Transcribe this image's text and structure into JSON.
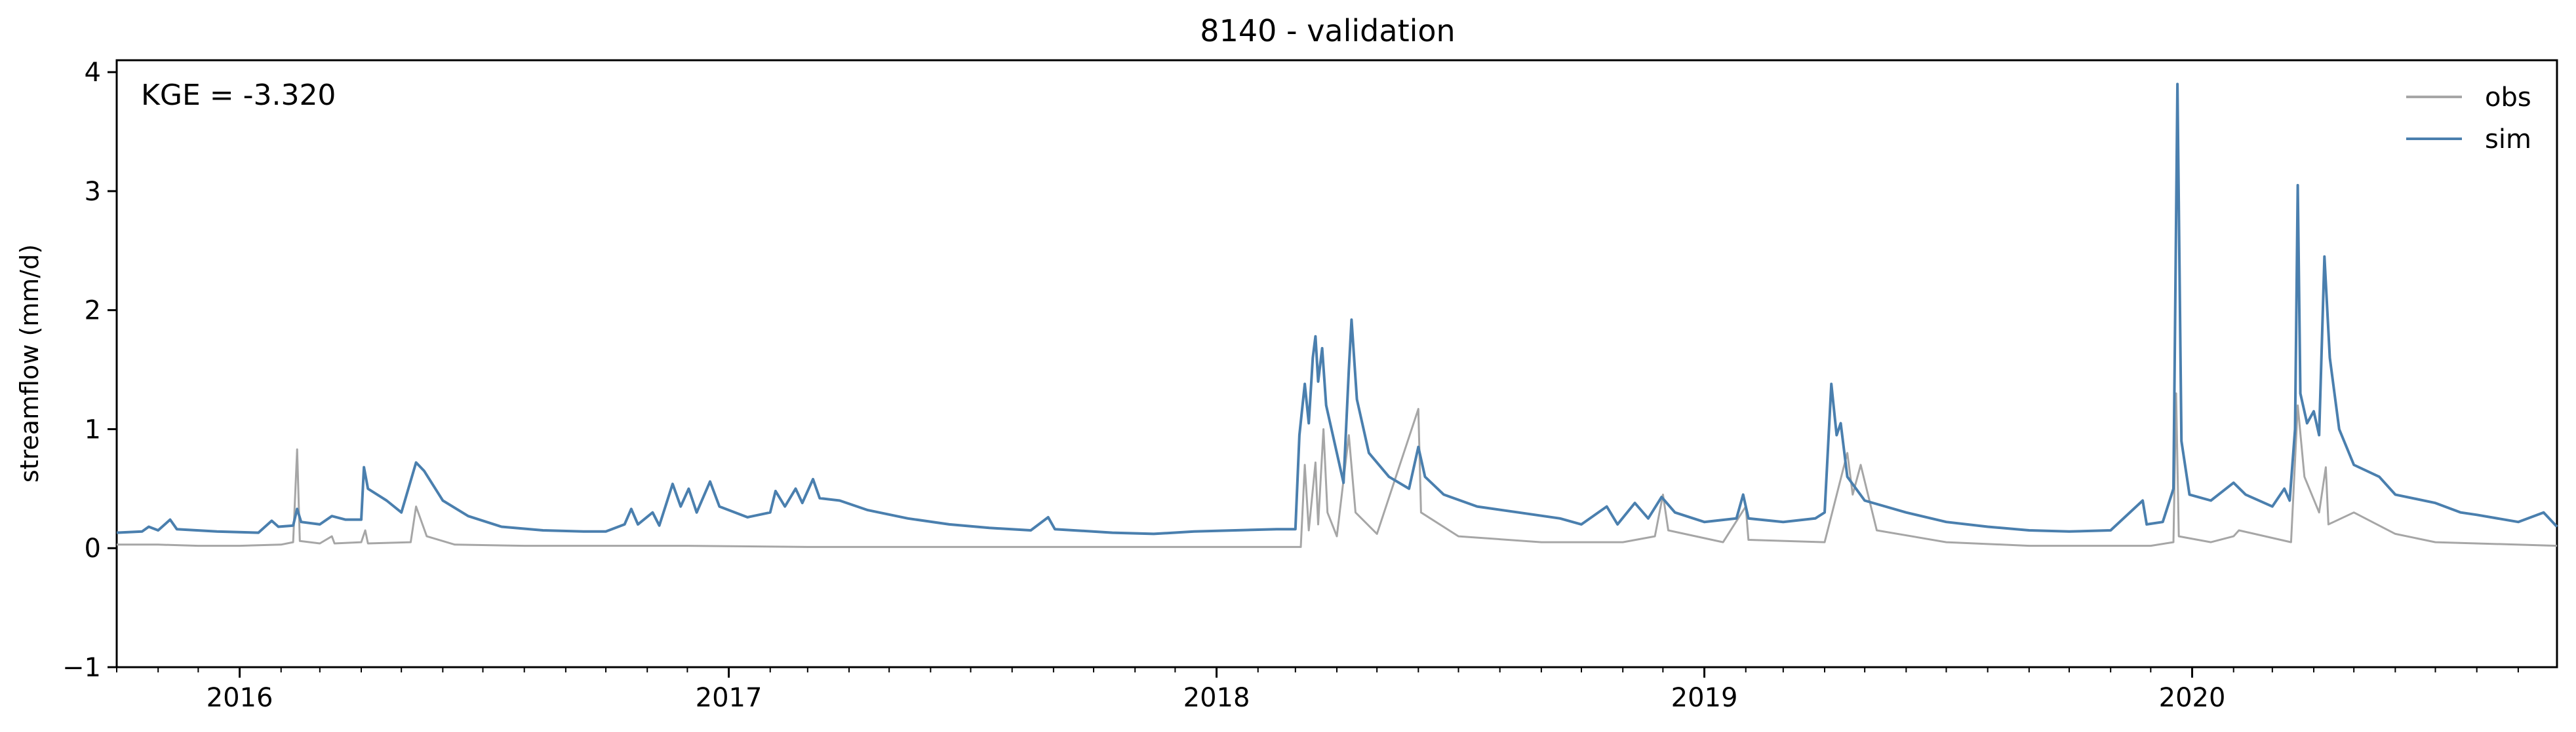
{
  "chart_data": {
    "type": "line",
    "title": "8140 - validation",
    "xlabel": "",
    "ylabel": "streamflow (mm/d)",
    "xlim": [
      "2015-10-01",
      "2020-09-30"
    ],
    "ylim": [
      -1,
      4.1
    ],
    "yticks": [
      -1,
      0,
      1,
      2,
      3,
      4
    ],
    "xticks": [
      "2016",
      "2017",
      "2018",
      "2019",
      "2020"
    ],
    "annotation": "KGE = -3.320",
    "legend": "top-right",
    "grid": false,
    "series": [
      {
        "name": "obs",
        "color": "#a6a6a6",
        "points": [
          [
            "2015-10-01",
            0.03
          ],
          [
            "2015-11-01",
            0.03
          ],
          [
            "2015-12-01",
            0.02
          ],
          [
            "2016-01-01",
            0.02
          ],
          [
            "2016-02-01",
            0.03
          ],
          [
            "2016-02-10",
            0.05
          ],
          [
            "2016-02-13",
            0.83
          ],
          [
            "2016-02-15",
            0.06
          ],
          [
            "2016-03-01",
            0.04
          ],
          [
            "2016-03-10",
            0.1
          ],
          [
            "2016-03-12",
            0.04
          ],
          [
            "2016-04-01",
            0.05
          ],
          [
            "2016-04-04",
            0.15
          ],
          [
            "2016-04-06",
            0.04
          ],
          [
            "2016-05-08",
            0.05
          ],
          [
            "2016-05-12",
            0.35
          ],
          [
            "2016-05-20",
            0.1
          ],
          [
            "2016-06-10",
            0.03
          ],
          [
            "2016-08-01",
            0.02
          ],
          [
            "2016-10-01",
            0.02
          ],
          [
            "2016-12-01",
            0.02
          ],
          [
            "2017-03-01",
            0.01
          ],
          [
            "2017-06-01",
            0.01
          ],
          [
            "2017-09-01",
            0.01
          ],
          [
            "2017-12-01",
            0.01
          ],
          [
            "2018-03-05",
            0.01
          ],
          [
            "2018-03-08",
            0.7
          ],
          [
            "2018-03-11",
            0.15
          ],
          [
            "2018-03-16",
            0.72
          ],
          [
            "2018-03-18",
            0.2
          ],
          [
            "2018-03-22",
            1.0
          ],
          [
            "2018-03-25",
            0.3
          ],
          [
            "2018-04-01",
            0.1
          ],
          [
            "2018-04-10",
            0.95
          ],
          [
            "2018-04-15",
            0.3
          ],
          [
            "2018-05-01",
            0.12
          ],
          [
            "2018-06-01",
            1.17
          ],
          [
            "2018-06-03",
            0.3
          ],
          [
            "2018-07-01",
            0.1
          ],
          [
            "2018-09-01",
            0.05
          ],
          [
            "2018-11-01",
            0.05
          ],
          [
            "2018-11-25",
            0.1
          ],
          [
            "2018-12-01",
            0.45
          ],
          [
            "2018-12-05",
            0.15
          ],
          [
            "2019-01-15",
            0.05
          ],
          [
            "2019-02-01",
            0.35
          ],
          [
            "2019-02-03",
            0.07
          ],
          [
            "2019-04-01",
            0.05
          ],
          [
            "2019-04-18",
            0.8
          ],
          [
            "2019-04-22",
            0.45
          ],
          [
            "2019-04-28",
            0.7
          ],
          [
            "2019-05-10",
            0.15
          ],
          [
            "2019-07-01",
            0.05
          ],
          [
            "2019-09-01",
            0.02
          ],
          [
            "2019-12-01",
            0.02
          ],
          [
            "2019-12-18",
            0.05
          ],
          [
            "2019-12-20",
            1.3
          ],
          [
            "2019-12-22",
            0.1
          ],
          [
            "2020-01-15",
            0.05
          ],
          [
            "2020-02-01",
            0.1
          ],
          [
            "2020-02-05",
            0.15
          ],
          [
            "2020-03-15",
            0.05
          ],
          [
            "2020-03-20",
            1.2
          ],
          [
            "2020-03-25",
            0.6
          ],
          [
            "2020-04-05",
            0.3
          ],
          [
            "2020-04-10",
            0.68
          ],
          [
            "2020-04-12",
            0.2
          ],
          [
            "2020-05-01",
            0.3
          ],
          [
            "2020-06-01",
            0.12
          ],
          [
            "2020-07-01",
            0.05
          ],
          [
            "2020-09-30",
            0.02
          ]
        ]
      },
      {
        "name": "sim",
        "color": "#4a7fae",
        "points": [
          [
            "2015-10-01",
            0.13
          ],
          [
            "2015-10-20",
            0.14
          ],
          [
            "2015-10-25",
            0.18
          ],
          [
            "2015-11-01",
            0.15
          ],
          [
            "2015-11-10",
            0.24
          ],
          [
            "2015-11-15",
            0.16
          ],
          [
            "2015-12-15",
            0.14
          ],
          [
            "2016-01-15",
            0.13
          ],
          [
            "2016-01-25",
            0.23
          ],
          [
            "2016-01-30",
            0.18
          ],
          [
            "2016-02-10",
            0.19
          ],
          [
            "2016-02-13",
            0.33
          ],
          [
            "2016-02-16",
            0.22
          ],
          [
            "2016-03-01",
            0.2
          ],
          [
            "2016-03-10",
            0.27
          ],
          [
            "2016-03-20",
            0.24
          ],
          [
            "2016-04-01",
            0.24
          ],
          [
            "2016-04-03",
            0.68
          ],
          [
            "2016-04-06",
            0.5
          ],
          [
            "2016-04-20",
            0.4
          ],
          [
            "2016-05-01",
            0.3
          ],
          [
            "2016-05-12",
            0.72
          ],
          [
            "2016-05-18",
            0.65
          ],
          [
            "2016-06-01",
            0.4
          ],
          [
            "2016-06-20",
            0.27
          ],
          [
            "2016-07-15",
            0.18
          ],
          [
            "2016-08-15",
            0.15
          ],
          [
            "2016-09-15",
            0.14
          ],
          [
            "2016-10-01",
            0.14
          ],
          [
            "2016-10-15",
            0.2
          ],
          [
            "2016-10-20",
            0.33
          ],
          [
            "2016-10-25",
            0.2
          ],
          [
            "2016-11-05",
            0.3
          ],
          [
            "2016-11-10",
            0.19
          ],
          [
            "2016-11-20",
            0.54
          ],
          [
            "2016-11-26",
            0.35
          ],
          [
            "2016-12-02",
            0.5
          ],
          [
            "2016-12-08",
            0.3
          ],
          [
            "2016-12-18",
            0.56
          ],
          [
            "2016-12-25",
            0.35
          ],
          [
            "2017-01-15",
            0.26
          ],
          [
            "2017-02-01",
            0.3
          ],
          [
            "2017-02-05",
            0.48
          ],
          [
            "2017-02-12",
            0.35
          ],
          [
            "2017-02-20",
            0.5
          ],
          [
            "2017-02-25",
            0.38
          ],
          [
            "2017-03-05",
            0.58
          ],
          [
            "2017-03-10",
            0.42
          ],
          [
            "2017-03-25",
            0.4
          ],
          [
            "2017-04-15",
            0.32
          ],
          [
            "2017-05-15",
            0.25
          ],
          [
            "2017-06-15",
            0.2
          ],
          [
            "2017-07-15",
            0.17
          ],
          [
            "2017-08-15",
            0.15
          ],
          [
            "2017-08-28",
            0.26
          ],
          [
            "2017-09-02",
            0.16
          ],
          [
            "2017-10-15",
            0.13
          ],
          [
            "2017-11-15",
            0.12
          ],
          [
            "2017-12-15",
            0.14
          ],
          [
            "2018-01-15",
            0.15
          ],
          [
            "2018-02-15",
            0.16
          ],
          [
            "2018-03-01",
            0.16
          ],
          [
            "2018-03-04",
            0.95
          ],
          [
            "2018-03-08",
            1.38
          ],
          [
            "2018-03-11",
            1.05
          ],
          [
            "2018-03-14",
            1.6
          ],
          [
            "2018-03-16",
            1.78
          ],
          [
            "2018-03-18",
            1.4
          ],
          [
            "2018-03-21",
            1.68
          ],
          [
            "2018-03-24",
            1.2
          ],
          [
            "2018-04-01",
            0.8
          ],
          [
            "2018-04-06",
            0.55
          ],
          [
            "2018-04-10",
            1.5
          ],
          [
            "2018-04-12",
            1.92
          ],
          [
            "2018-04-16",
            1.25
          ],
          [
            "2018-04-25",
            0.8
          ],
          [
            "2018-05-10",
            0.6
          ],
          [
            "2018-05-25",
            0.5
          ],
          [
            "2018-06-01",
            0.85
          ],
          [
            "2018-06-06",
            0.6
          ],
          [
            "2018-06-20",
            0.45
          ],
          [
            "2018-07-15",
            0.35
          ],
          [
            "2018-08-15",
            0.3
          ],
          [
            "2018-09-15",
            0.25
          ],
          [
            "2018-10-01",
            0.2
          ],
          [
            "2018-10-20",
            0.35
          ],
          [
            "2018-10-28",
            0.2
          ],
          [
            "2018-11-10",
            0.38
          ],
          [
            "2018-11-20",
            0.25
          ],
          [
            "2018-11-30",
            0.43
          ],
          [
            "2018-12-10",
            0.3
          ],
          [
            "2019-01-01",
            0.22
          ],
          [
            "2019-01-25",
            0.25
          ],
          [
            "2019-01-30",
            0.45
          ],
          [
            "2019-02-03",
            0.25
          ],
          [
            "2019-03-01",
            0.22
          ],
          [
            "2019-03-25",
            0.25
          ],
          [
            "2019-04-01",
            0.3
          ],
          [
            "2019-04-06",
            1.38
          ],
          [
            "2019-04-10",
            0.95
          ],
          [
            "2019-04-13",
            1.05
          ],
          [
            "2019-04-18",
            0.6
          ],
          [
            "2019-05-01",
            0.4
          ],
          [
            "2019-06-01",
            0.3
          ],
          [
            "2019-07-01",
            0.22
          ],
          [
            "2019-08-01",
            0.18
          ],
          [
            "2019-09-01",
            0.15
          ],
          [
            "2019-10-01",
            0.14
          ],
          [
            "2019-11-01",
            0.15
          ],
          [
            "2019-11-25",
            0.4
          ],
          [
            "2019-11-28",
            0.2
          ],
          [
            "2019-12-10",
            0.22
          ],
          [
            "2019-12-18",
            0.5
          ],
          [
            "2019-12-21",
            3.9
          ],
          [
            "2019-12-24",
            0.9
          ],
          [
            "2019-12-30",
            0.45
          ],
          [
            "2020-01-15",
            0.4
          ],
          [
            "2020-02-01",
            0.55
          ],
          [
            "2020-02-10",
            0.45
          ],
          [
            "2020-03-01",
            0.35
          ],
          [
            "2020-03-10",
            0.5
          ],
          [
            "2020-03-14",
            0.4
          ],
          [
            "2020-03-18",
            1.0
          ],
          [
            "2020-03-20",
            3.05
          ],
          [
            "2020-03-22",
            1.3
          ],
          [
            "2020-03-27",
            1.05
          ],
          [
            "2020-04-01",
            1.15
          ],
          [
            "2020-04-05",
            0.95
          ],
          [
            "2020-04-09",
            2.45
          ],
          [
            "2020-04-13",
            1.6
          ],
          [
            "2020-04-20",
            1.0
          ],
          [
            "2020-05-01",
            0.7
          ],
          [
            "2020-05-20",
            0.6
          ],
          [
            "2020-06-01",
            0.45
          ],
          [
            "2020-07-01",
            0.38
          ],
          [
            "2020-07-20",
            0.3
          ],
          [
            "2020-08-01",
            0.28
          ],
          [
            "2020-09-01",
            0.22
          ],
          [
            "2020-09-20",
            0.3
          ],
          [
            "2020-09-30",
            0.18
          ]
        ]
      }
    ]
  }
}
